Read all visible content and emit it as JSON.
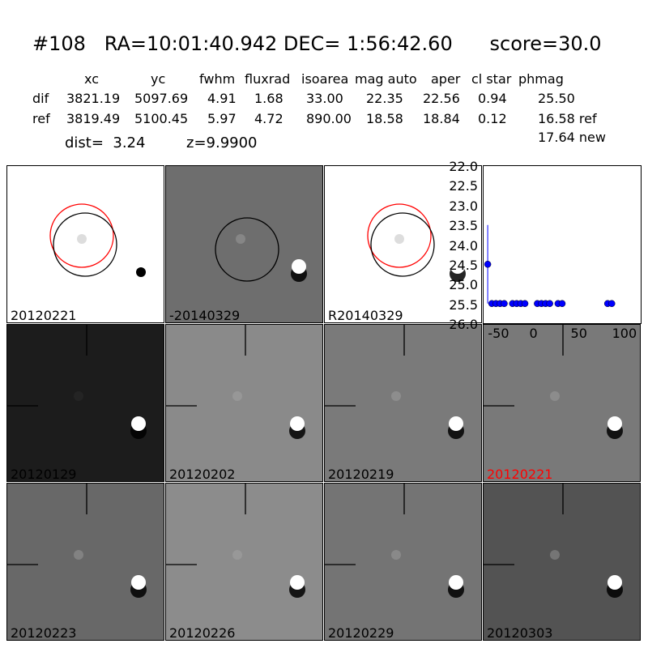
{
  "header": {
    "title": "#108   RA=10:01:40.942 DEC= 1:56:42.60      score=30.0"
  },
  "table": {
    "columns": [
      "xc",
      "yc",
      "fwhm",
      "fluxrad",
      "isoarea",
      "mag auto",
      "aper",
      "cl star",
      "phmag"
    ],
    "rows": [
      {
        "label": "dif",
        "values": [
          "3821.19",
          "5097.69",
          "4.91",
          "1.68",
          "33.00",
          "22.35",
          "22.56",
          "0.94",
          "25.50"
        ]
      },
      {
        "label": "ref",
        "values": [
          "3819.49",
          "5100.45",
          "5.97",
          "4.72",
          "890.00",
          "18.58",
          "18.84",
          "0.12",
          "16.58 ref"
        ]
      }
    ],
    "extra": "17.64 new",
    "dist": "dist=  3.24",
    "z": "z=9.9900"
  },
  "panels_top": [
    {
      "label": "20120221",
      "bg": "#ffffff"
    },
    {
      "label": "-20140329",
      "bg": "#6e6e6e"
    },
    {
      "label": "R20140329",
      "bg": "#ffffff"
    }
  ],
  "panels_grid": [
    {
      "label": "20120129",
      "bg": "#1c1c1c",
      "highlight": false
    },
    {
      "label": "20120202",
      "bg": "#8a8a8a",
      "highlight": false
    },
    {
      "label": "20120219",
      "bg": "#7a7a7a",
      "highlight": false
    },
    {
      "label": "20120221",
      "bg": "#797979",
      "highlight": true
    },
    {
      "label": "20120223",
      "bg": "#686868",
      "highlight": false
    },
    {
      "label": "20120226",
      "bg": "#8c8c8c",
      "highlight": false
    },
    {
      "label": "20120229",
      "bg": "#747474",
      "highlight": false
    },
    {
      "label": "20120303",
      "bg": "#535353",
      "highlight": false
    }
  ],
  "colors": {
    "highlight": "#ff0000",
    "marker": "#0000ff"
  },
  "chart_data": {
    "type": "scatter",
    "xlim": [
      -70,
      120
    ],
    "ylim": [
      26.0,
      22.0
    ],
    "yticks": [
      "22.0",
      "22.5",
      "23.0",
      "23.5",
      "24.0",
      "24.5",
      "25.0",
      "25.5",
      "26.0"
    ],
    "xticks": [
      "-50",
      "0",
      "50",
      "100"
    ],
    "series": [
      {
        "x": [
          -65,
          -60,
          -55,
          -50,
          -45,
          -35,
          -30,
          -25,
          -20,
          -5,
          0,
          5,
          10,
          20,
          25,
          80,
          85
        ],
        "y": [
          24.5,
          25.5,
          25.5,
          25.5,
          25.5,
          25.5,
          25.5,
          25.5,
          25.5,
          25.5,
          25.5,
          25.5,
          25.5,
          25.5,
          25.5,
          25.5,
          25.5
        ]
      }
    ]
  }
}
